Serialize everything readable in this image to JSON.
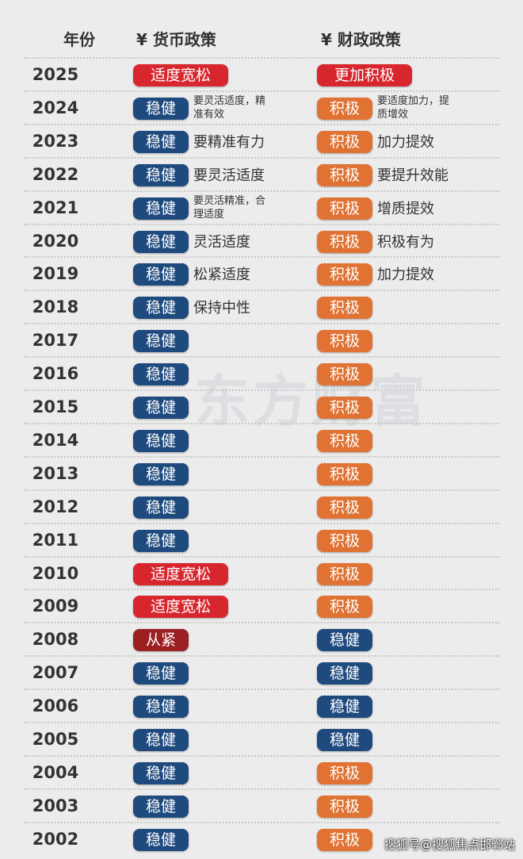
{
  "header": {
    "year": "年份",
    "monetary": "¥ 货币政策",
    "fiscal": "¥ 财政政策"
  },
  "watermark": "东方财富",
  "source": "搜狐号@搜狐焦点邯郸站",
  "rows": [
    {
      "year": "2025",
      "monetary": {
        "label": "适度宽松",
        "color": "#d7262e"
      },
      "fiscal": {
        "label": "更加积极",
        "color": "#d7262e"
      }
    },
    {
      "year": "2024",
      "monetary": {
        "label": "稳健",
        "color": "#1f4a7e",
        "note": "要灵活适度，精准有效"
      },
      "fiscal": {
        "label": "积极",
        "color": "#e07334",
        "note": "要适度加力，提质增效"
      }
    },
    {
      "year": "2023",
      "monetary": {
        "label": "稳健",
        "color": "#1f4a7e",
        "note": "要精准有力"
      },
      "fiscal": {
        "label": "积极",
        "color": "#e07334",
        "note": "加力提效"
      }
    },
    {
      "year": "2022",
      "monetary": {
        "label": "稳健",
        "color": "#1f4a7e",
        "note": "要灵活适度"
      },
      "fiscal": {
        "label": "积极",
        "color": "#e07334",
        "note": "要提升效能"
      }
    },
    {
      "year": "2021",
      "monetary": {
        "label": "稳健",
        "color": "#1f4a7e",
        "note": "要灵活精准，合理适度"
      },
      "fiscal": {
        "label": "积极",
        "color": "#e07334",
        "note": "增质提效"
      }
    },
    {
      "year": "2020",
      "monetary": {
        "label": "稳健",
        "color": "#1f4a7e",
        "note": "灵活适度"
      },
      "fiscal": {
        "label": "积极",
        "color": "#e07334",
        "note": "积极有为"
      }
    },
    {
      "year": "2019",
      "monetary": {
        "label": "稳健",
        "color": "#1f4a7e",
        "note": "松紧适度"
      },
      "fiscal": {
        "label": "积极",
        "color": "#e07334",
        "note": "加力提效"
      }
    },
    {
      "year": "2018",
      "monetary": {
        "label": "稳健",
        "color": "#1f4a7e",
        "note": "保持中性"
      },
      "fiscal": {
        "label": "积极",
        "color": "#e07334"
      }
    },
    {
      "year": "2017",
      "monetary": {
        "label": "稳健",
        "color": "#1f4a7e"
      },
      "fiscal": {
        "label": "积极",
        "color": "#e07334"
      }
    },
    {
      "year": "2016",
      "monetary": {
        "label": "稳健",
        "color": "#1f4a7e"
      },
      "fiscal": {
        "label": "积极",
        "color": "#e07334"
      }
    },
    {
      "year": "2015",
      "monetary": {
        "label": "稳健",
        "color": "#1f4a7e"
      },
      "fiscal": {
        "label": "积极",
        "color": "#e07334"
      }
    },
    {
      "year": "2014",
      "monetary": {
        "label": "稳健",
        "color": "#1f4a7e"
      },
      "fiscal": {
        "label": "积极",
        "color": "#e07334"
      }
    },
    {
      "year": "2013",
      "monetary": {
        "label": "稳健",
        "color": "#1f4a7e"
      },
      "fiscal": {
        "label": "积极",
        "color": "#e07334"
      }
    },
    {
      "year": "2012",
      "monetary": {
        "label": "稳健",
        "color": "#1f4a7e"
      },
      "fiscal": {
        "label": "积极",
        "color": "#e07334"
      }
    },
    {
      "year": "2011",
      "monetary": {
        "label": "稳健",
        "color": "#1f4a7e"
      },
      "fiscal": {
        "label": "积极",
        "color": "#e07334"
      }
    },
    {
      "year": "2010",
      "monetary": {
        "label": "适度宽松",
        "color": "#d7262e"
      },
      "fiscal": {
        "label": "积极",
        "color": "#e07334"
      }
    },
    {
      "year": "2009",
      "monetary": {
        "label": "适度宽松",
        "color": "#d7262e"
      },
      "fiscal": {
        "label": "积极",
        "color": "#e07334"
      }
    },
    {
      "year": "2008",
      "monetary": {
        "label": "从紧",
        "color": "#9c1f22"
      },
      "fiscal": {
        "label": "稳健",
        "color": "#1f4a7e"
      }
    },
    {
      "year": "2007",
      "monetary": {
        "label": "稳健",
        "color": "#1f4a7e"
      },
      "fiscal": {
        "label": "稳健",
        "color": "#1f4a7e"
      }
    },
    {
      "year": "2006",
      "monetary": {
        "label": "稳健",
        "color": "#1f4a7e"
      },
      "fiscal": {
        "label": "稳健",
        "color": "#1f4a7e"
      }
    },
    {
      "year": "2005",
      "monetary": {
        "label": "稳健",
        "color": "#1f4a7e"
      },
      "fiscal": {
        "label": "稳健",
        "color": "#1f4a7e"
      }
    },
    {
      "year": "2004",
      "monetary": {
        "label": "稳健",
        "color": "#1f4a7e"
      },
      "fiscal": {
        "label": "积极",
        "color": "#e07334"
      }
    },
    {
      "year": "2003",
      "monetary": {
        "label": "稳健",
        "color": "#1f4a7e"
      },
      "fiscal": {
        "label": "积极",
        "color": "#e07334"
      }
    },
    {
      "year": "2002",
      "monetary": {
        "label": "稳健",
        "color": "#1f4a7e"
      },
      "fiscal": {
        "label": "积极",
        "color": "#e07334"
      }
    }
  ]
}
